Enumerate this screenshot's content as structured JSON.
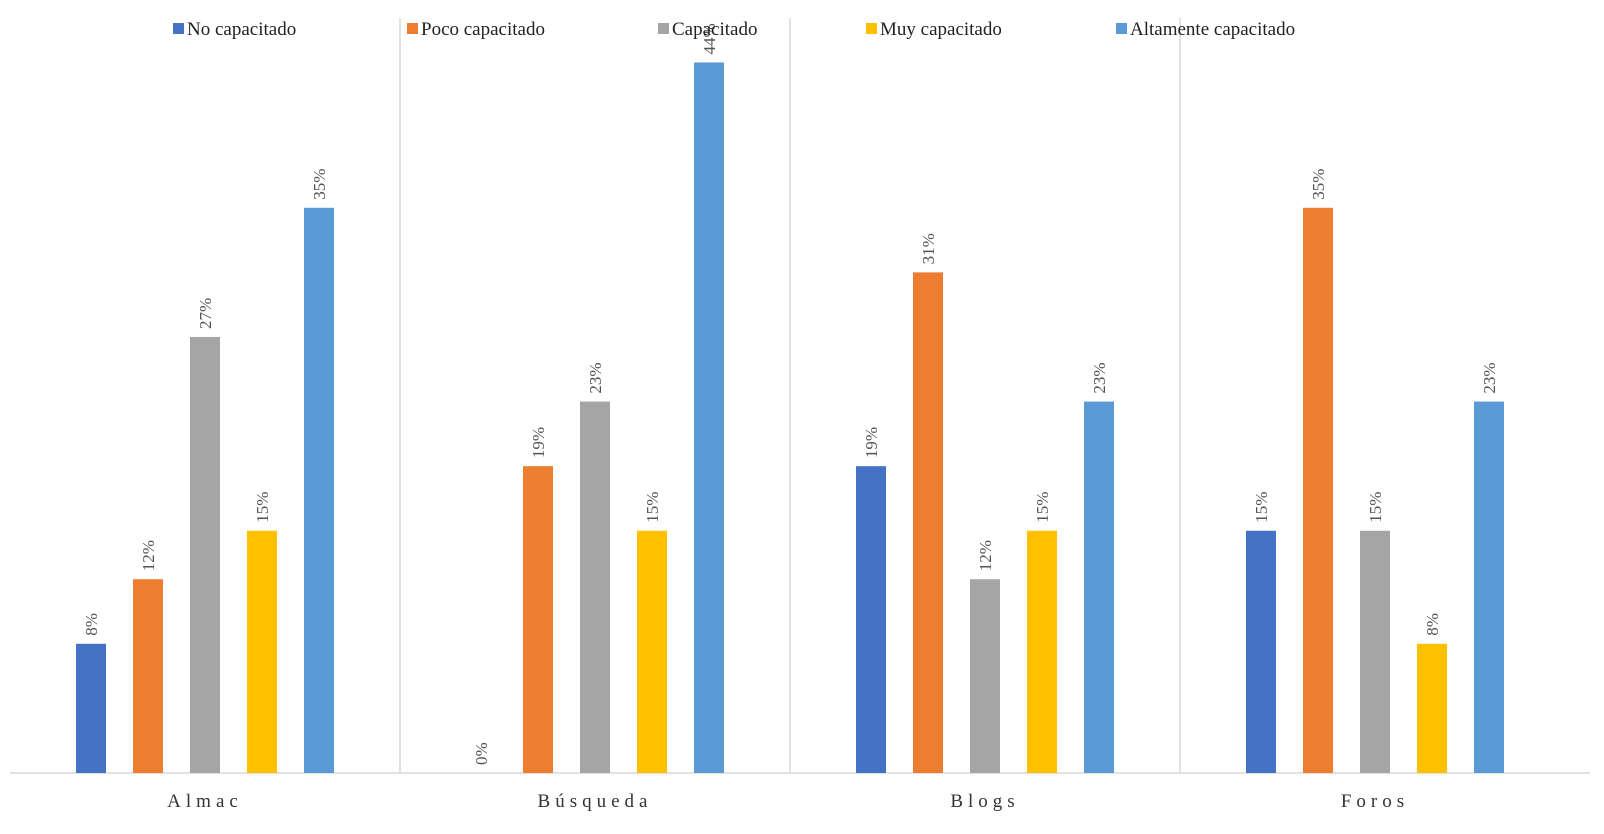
{
  "chart_data": {
    "type": "bar",
    "categories": [
      "Almac",
      "Búsqueda",
      "Blogs",
      "Foros"
    ],
    "series": [
      {
        "name": "No capacitado",
        "color": "#4472C4",
        "values": [
          8,
          0,
          19,
          15
        ],
        "labels": [
          "8%",
          "0%",
          "19%",
          "15%"
        ]
      },
      {
        "name": "Poco capacitado",
        "color": "#ED7D31",
        "values": [
          12,
          19,
          31,
          35
        ],
        "labels": [
          "12%",
          "19%",
          "31%",
          "35%"
        ]
      },
      {
        "name": "Capacitado",
        "color": "#A5A5A5",
        "values": [
          27,
          23,
          12,
          15
        ],
        "labels": [
          "27%",
          "23%",
          "12%",
          "15%"
        ]
      },
      {
        "name": "Muy capacitado",
        "color": "#FFC000",
        "values": [
          15,
          15,
          15,
          8
        ],
        "labels": [
          "15%",
          "15%",
          "15%",
          "8%"
        ]
      },
      {
        "name": "Altamente capacitado",
        "color": "#5B9BD5",
        "values": [
          35,
          44,
          23,
          23
        ],
        "labels": [
          "35%",
          "44%",
          "23%",
          "23%"
        ]
      }
    ],
    "ylim": [
      0,
      47
    ],
    "grid": false,
    "legend_position": "top"
  }
}
